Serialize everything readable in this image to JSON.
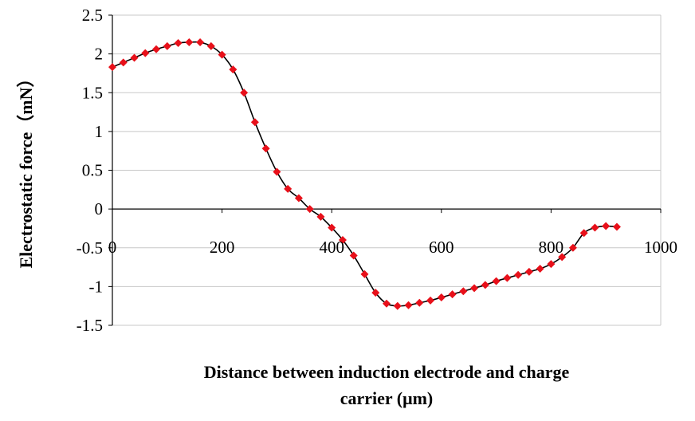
{
  "chart_data": {
    "type": "line",
    "title": "",
    "xlabel_lines": [
      "Distance between induction electrode and charge",
      "carrier (μm)"
    ],
    "ylabel": "Electrostatic force（mN）",
    "xlim": [
      0,
      1000
    ],
    "ylim": [
      -1.5,
      2.5
    ],
    "x_ticks": [
      0,
      200,
      400,
      600,
      800,
      1000
    ],
    "y_ticks": [
      -1.5,
      -1,
      -0.5,
      0,
      0.5,
      1,
      1.5,
      2,
      2.5
    ],
    "y_tick_labels": [
      "-1.5",
      "-1",
      "-0.5",
      "0",
      "0.5",
      "1",
      "1.5",
      "2",
      "2.5"
    ],
    "grid": "horizontal",
    "legend": "none",
    "series": [
      {
        "color": "#e8101a",
        "line_color": "#000000",
        "marker": "diamond",
        "x": [
          0,
          20,
          40,
          60,
          80,
          100,
          120,
          140,
          160,
          180,
          200,
          220,
          240,
          260,
          280,
          300,
          320,
          340,
          360,
          380,
          400,
          420,
          440,
          460,
          480,
          500,
          520,
          540,
          560,
          580,
          600,
          620,
          640,
          660,
          680,
          700,
          720,
          740,
          760,
          780,
          800,
          820,
          840,
          860,
          880,
          900,
          920
        ],
        "y": [
          1.83,
          1.89,
          1.95,
          2.01,
          2.06,
          2.1,
          2.14,
          2.15,
          2.15,
          2.1,
          1.99,
          1.8,
          1.5,
          1.12,
          0.78,
          0.48,
          0.26,
          0.14,
          0.0,
          -0.1,
          -0.24,
          -0.4,
          -0.6,
          -0.84,
          -1.08,
          -1.22,
          -1.25,
          -1.24,
          -1.21,
          -1.18,
          -1.14,
          -1.1,
          -1.06,
          -1.02,
          -0.98,
          -0.93,
          -0.89,
          -0.85,
          -0.81,
          -0.77,
          -0.71,
          -0.62,
          -0.5,
          -0.31,
          -0.24,
          -0.22,
          -0.23
        ]
      }
    ]
  }
}
